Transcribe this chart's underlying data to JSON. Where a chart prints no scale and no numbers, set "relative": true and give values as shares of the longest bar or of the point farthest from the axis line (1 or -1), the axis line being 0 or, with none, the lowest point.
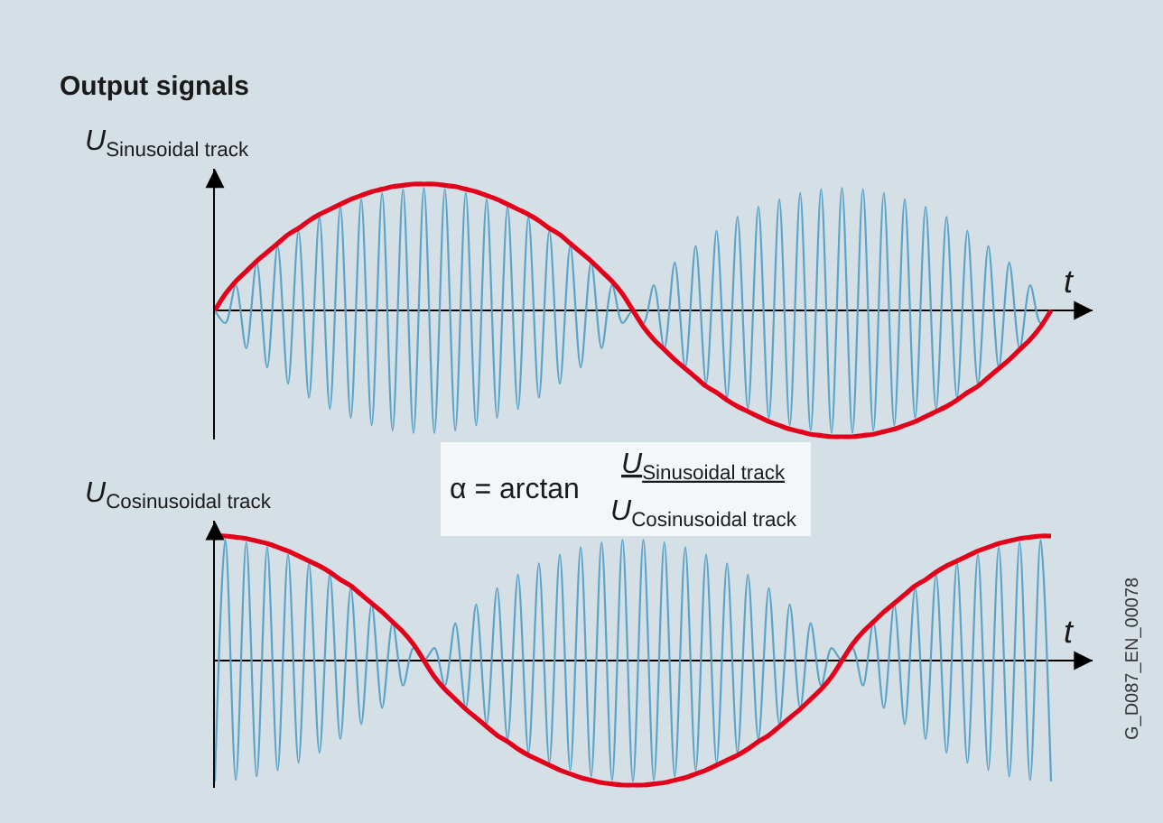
{
  "chart_data": [
    {
      "type": "line",
      "title": "Output signals",
      "xlabel": "t",
      "ylabel": "U$_{Sinusoidal track}$",
      "relative": true,
      "categories": [
        null,
        null,
        null,
        null,
        null,
        null,
        null,
        null,
        null,
        null,
        null,
        null,
        null,
        null,
        null,
        null,
        null,
        null,
        null,
        null,
        null,
        null,
        null,
        null,
        null,
        null,
        null,
        null,
        null,
        null,
        null,
        null,
        null,
        null,
        null,
        null,
        null,
        null,
        null,
        null,
        null,
        null,
        null,
        null,
        null,
        null,
        null,
        null,
        null,
        null,
        null,
        null,
        null,
        null,
        null,
        null,
        null,
        null,
        null,
        null,
        null,
        null,
        null,
        null,
        null,
        null,
        null,
        null,
        null,
        null,
        null,
        null,
        null,
        null,
        null,
        null,
        null,
        null,
        null,
        null,
        null
      ],
      "series": [
        {
          "color": "#5ba3c7",
          "values": [
            0,
            -0.1,
            0.2,
            -0.3,
            0.38,
            -0.45,
            0.51,
            -0.58,
            0.63,
            -0.69,
            0.74,
            -0.78,
            0.82,
            -0.85,
            0.88,
            -0.91,
            0.93,
            -0.95,
            0.96,
            -0.97,
            0.97,
            -0.97,
            0.96,
            -0.95,
            0.93,
            -0.91,
            0.88,
            -0.85,
            0.82,
            -0.78,
            0.74,
            -0.69,
            0.63,
            -0.58,
            0.51,
            -0.45,
            0.38,
            -0.3,
            0.2,
            -0.1,
            0,
            -0.1,
            0.2,
            -0.3,
            0.38,
            -0.45,
            0.51,
            -0.58,
            0.63,
            -0.69,
            0.74,
            -0.78,
            0.82,
            -0.85,
            0.88,
            -0.91,
            0.93,
            -0.95,
            0.96,
            -0.97,
            0.97,
            -0.97,
            0.96,
            -0.95,
            0.93,
            -0.91,
            0.88,
            -0.85,
            0.82,
            -0.78,
            0.74,
            -0.69,
            0.63,
            -0.58,
            0.51,
            -0.45,
            0.38,
            -0.3,
            0.2,
            -0.1,
            0
          ]
        },
        {
          "color": "#e3001b",
          "values": [
            0,
            0.13,
            0.23,
            0.31,
            0.39,
            0.46,
            0.53,
            0.6,
            0.65,
            0.71,
            0.76,
            0.8,
            0.84,
            0.88,
            0.91,
            0.94,
            0.96,
            0.98,
            0.99,
            1,
            1,
            1,
            0.99,
            0.98,
            0.96,
            0.94,
            0.91,
            0.88,
            0.84,
            0.8,
            0.76,
            0.71,
            0.65,
            0.6,
            0.53,
            0.46,
            0.39,
            0.31,
            0.23,
            0.13,
            0,
            -0.13,
            -0.23,
            -0.31,
            -0.39,
            -0.46,
            -0.53,
            -0.6,
            -0.65,
            -0.71,
            -0.76,
            -0.8,
            -0.84,
            -0.88,
            -0.91,
            -0.94,
            -0.96,
            -0.98,
            -0.99,
            -1,
            -1,
            -1,
            -0.99,
            -0.98,
            -0.96,
            -0.94,
            -0.91,
            -0.88,
            -0.84,
            -0.8,
            -0.76,
            -0.71,
            -0.65,
            -0.6,
            -0.53,
            -0.46,
            -0.39,
            -0.31,
            -0.23,
            -0.13,
            0
          ]
        }
      ]
    },
    {
      "type": "line",
      "xlabel": "t",
      "ylabel": "U$_{Cosinusoidal track}$",
      "relative": true,
      "categories": [
        null,
        null,
        null,
        null,
        null,
        null,
        null,
        null,
        null,
        null,
        null,
        null,
        null,
        null,
        null,
        null,
        null,
        null,
        null,
        null,
        null,
        null,
        null,
        null,
        null,
        null,
        null,
        null,
        null,
        null,
        null,
        null,
        null,
        null,
        null,
        null,
        null,
        null,
        null,
        null,
        null,
        null,
        null,
        null,
        null,
        null,
        null,
        null,
        null,
        null,
        null,
        null,
        null,
        null,
        null,
        null,
        null,
        null,
        null,
        null,
        null,
        null,
        null,
        null,
        null,
        null,
        null,
        null,
        null,
        null,
        null,
        null,
        null,
        null,
        null,
        null,
        null,
        null,
        null,
        null,
        null
      ],
      "series": [
        {
          "color": "#5ba3c7",
          "values": [
            -0.97,
            0.97,
            -0.96,
            0.95,
            -0.93,
            0.91,
            -0.88,
            0.85,
            -0.82,
            0.78,
            -0.74,
            0.69,
            -0.63,
            0.58,
            -0.51,
            0.45,
            -0.38,
            0.3,
            -0.2,
            0.1,
            0,
            0.1,
            -0.2,
            0.3,
            -0.38,
            0.45,
            -0.51,
            0.58,
            -0.63,
            0.69,
            -0.74,
            0.78,
            -0.82,
            0.85,
            -0.88,
            0.91,
            -0.93,
            0.95,
            -0.96,
            0.97,
            -0.97,
            0.97,
            -0.96,
            0.95,
            -0.93,
            0.91,
            -0.88,
            0.85,
            -0.82,
            0.78,
            -0.74,
            0.69,
            -0.63,
            0.58,
            -0.51,
            0.45,
            -0.38,
            0.3,
            -0.2,
            0.1,
            0,
            0.1,
            -0.2,
            0.3,
            -0.38,
            0.45,
            -0.51,
            0.58,
            -0.63,
            0.69,
            -0.74,
            0.78,
            -0.82,
            0.85,
            -0.88,
            0.91,
            -0.93,
            0.95,
            -0.96,
            0.97,
            -0.97
          ]
        },
        {
          "color": "#e3001b",
          "values": [
            1,
            1,
            0.99,
            0.98,
            0.96,
            0.94,
            0.91,
            0.88,
            0.84,
            0.8,
            0.76,
            0.71,
            0.65,
            0.6,
            0.53,
            0.46,
            0.39,
            0.31,
            0.23,
            0.13,
            0,
            -0.13,
            -0.23,
            -0.31,
            -0.39,
            -0.46,
            -0.53,
            -0.6,
            -0.65,
            -0.71,
            -0.76,
            -0.8,
            -0.84,
            -0.88,
            -0.91,
            -0.94,
            -0.96,
            -0.98,
            -0.99,
            -1,
            -1,
            -1,
            -0.99,
            -0.98,
            -0.96,
            -0.94,
            -0.91,
            -0.88,
            -0.84,
            -0.8,
            -0.76,
            -0.71,
            -0.65,
            -0.6,
            -0.53,
            -0.46,
            -0.39,
            -0.31,
            -0.23,
            -0.13,
            0,
            0.13,
            0.23,
            0.31,
            0.39,
            0.46,
            0.53,
            0.6,
            0.65,
            0.71,
            0.76,
            0.8,
            0.84,
            0.88,
            0.91,
            0.94,
            0.96,
            0.98,
            0.99,
            1,
            1
          ]
        }
      ],
      "annotations": [
        "α = arctan",
        "U$_{Sinusoidal track}$",
        "U$_{Cosinusoidal track}$",
        "G_D087_EN_00078"
      ]
    }
  ]
}
